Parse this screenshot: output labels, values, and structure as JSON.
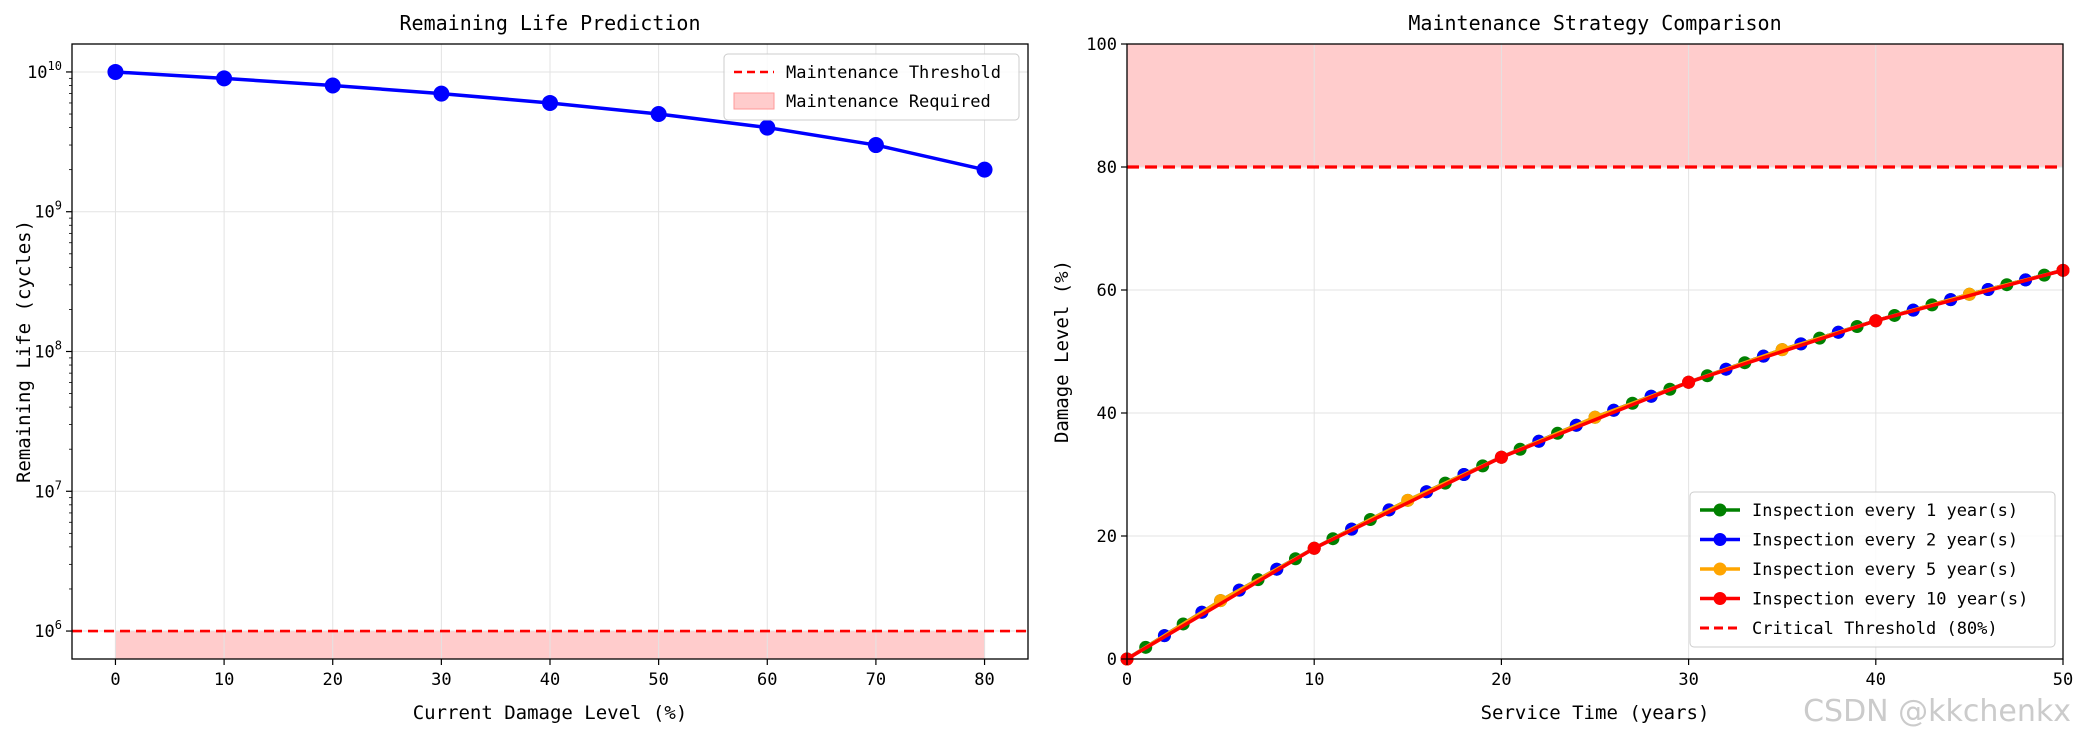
{
  "watermark": "CSDN @kkchenkx",
  "chart_data": [
    {
      "type": "line",
      "title": "Remaining Life Prediction",
      "xlabel": "Current Damage Level (%)",
      "ylabel": "Remaining Life (cycles)",
      "yscale": "log",
      "xlim": [
        -4,
        84
      ],
      "xticks": [
        0,
        10,
        20,
        30,
        40,
        50,
        60,
        70,
        80
      ],
      "yticks": [
        {
          "value": 1000000,
          "base": "10",
          "exp": "6"
        },
        {
          "value": 10000000,
          "base": "10",
          "exp": "7"
        },
        {
          "value": 100000000,
          "base": "10",
          "exp": "8"
        },
        {
          "value": 1000000000,
          "base": "10",
          "exp": "9"
        },
        {
          "value": 10000000000,
          "base": "10",
          "exp": "10"
        }
      ],
      "grid": true,
      "legend_position": "top-right",
      "series": [
        {
          "color": "#0000ff",
          "x": [
            0,
            10,
            20,
            30,
            40,
            50,
            60,
            70,
            80
          ],
          "y": [
            10000000000,
            9000000000,
            8000000000,
            7000000000,
            6000000000,
            5000000000,
            4000000000,
            3000000000,
            2000000000
          ]
        }
      ],
      "threshold": {
        "name": "Maintenance Threshold",
        "value": 1000000,
        "color": "#ff0000",
        "style": "dashed"
      },
      "shaded_region": {
        "name": "Maintenance Required",
        "x": [
          0,
          80
        ],
        "color": "#ffcccc"
      },
      "legend": [
        {
          "label": "Maintenance Threshold",
          "kind": "dashed-line",
          "color": "#ff0000"
        },
        {
          "label": "Maintenance Required",
          "kind": "patch",
          "color": "#ffcccc"
        }
      ]
    },
    {
      "type": "line",
      "title": "Maintenance Strategy Comparison",
      "xlabel": "Service Time (years)",
      "ylabel": "Damage Level (%)",
      "xlim": [
        0,
        50
      ],
      "ylim": [
        0,
        100
      ],
      "xticks": [
        0,
        10,
        20,
        30,
        40,
        50
      ],
      "yticks": [
        0,
        20,
        40,
        60,
        80,
        100
      ],
      "grid": true,
      "legend_position": "bottom-right",
      "curve": {
        "description": "damage grows nonlinearly with service time",
        "x": [
          0,
          5,
          10,
          15,
          20,
          25,
          30,
          35,
          40,
          45,
          50
        ],
        "y": [
          0,
          9.5,
          18.0,
          25.8,
          32.8,
          39.3,
          45.0,
          50.3,
          55.0,
          59.3,
          63.2
        ]
      },
      "series": [
        {
          "name": "Inspection every 1 year(s)",
          "color": "#008000",
          "interval": 1
        },
        {
          "name": "Inspection every 2 year(s)",
          "color": "#0000ff",
          "interval": 2
        },
        {
          "name": "Inspection every 5 year(s)",
          "color": "#ffa500",
          "interval": 5
        },
        {
          "name": "Inspection every 10 year(s)",
          "color": "#ff0000",
          "interval": 10
        }
      ],
      "threshold": {
        "name": "Critical Threshold (80%)",
        "value": 80,
        "color": "#ff0000",
        "style": "dashed"
      },
      "shaded_region": {
        "y": [
          80,
          100
        ],
        "color": "#ffcccc"
      },
      "legend": [
        {
          "label": "Inspection every 1 year(s)",
          "kind": "line-marker",
          "color": "#008000"
        },
        {
          "label": "Inspection every 2 year(s)",
          "kind": "line-marker",
          "color": "#0000ff"
        },
        {
          "label": "Inspection every 5 year(s)",
          "kind": "line-marker",
          "color": "#ffa500"
        },
        {
          "label": "Inspection every 10 year(s)",
          "kind": "line-marker",
          "color": "#ff0000"
        },
        {
          "label": "Critical Threshold (80%)",
          "kind": "dashed-line",
          "color": "#ff0000"
        }
      ]
    }
  ]
}
